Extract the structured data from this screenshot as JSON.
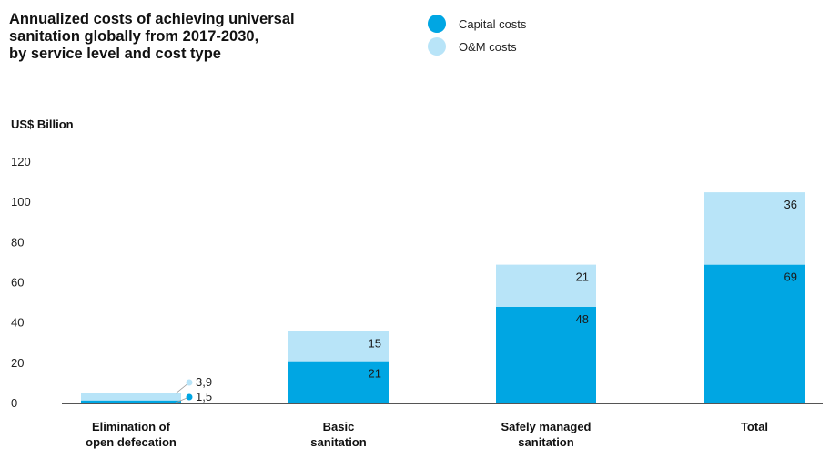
{
  "title_lines": [
    "Annualized costs of achieving universal",
    "sanitation globally from 2017-2030,",
    "by service level and cost type"
  ],
  "legend": [
    {
      "label": "Capital costs",
      "color": "#00a6e3"
    },
    {
      "label": "O&M costs",
      "color": "#b8e4f8"
    }
  ],
  "chart_data": {
    "type": "bar",
    "stacked": true,
    "ylabel": "US$ Billion",
    "ylim": [
      0,
      120
    ],
    "yticks": [
      0,
      20,
      40,
      60,
      80,
      100,
      120
    ],
    "grid": false,
    "legend_position": "top-right",
    "categories": [
      [
        "Elimination of",
        "open defecation"
      ],
      [
        "Basic",
        "sanitation"
      ],
      [
        "Safely managed",
        "sanitation"
      ],
      [
        "Total"
      ]
    ],
    "series": [
      {
        "name": "Capital costs",
        "color": "#00a6e3",
        "values": [
          1.5,
          21,
          48,
          69
        ],
        "labels": [
          "1,5",
          "21",
          "48",
          "69"
        ]
      },
      {
        "name": "O&M costs",
        "color": "#b8e4f8",
        "values": [
          3.9,
          15,
          21,
          36
        ],
        "labels": [
          "3,9",
          "15",
          "21",
          "36"
        ]
      }
    ]
  }
}
